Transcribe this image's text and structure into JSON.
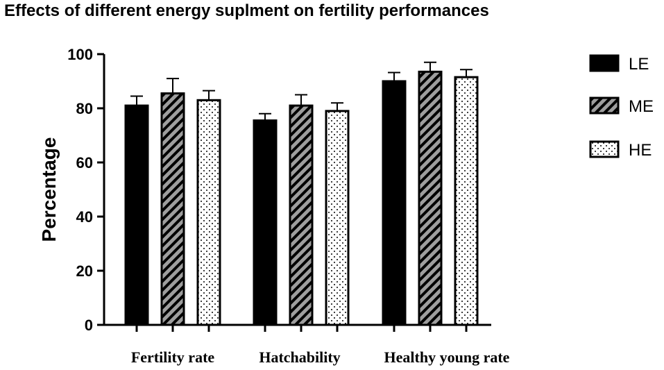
{
  "chart_data": {
    "type": "bar",
    "title": "Effects of different energy suplment on fertility performances",
    "xlabel": "",
    "ylabel": "Percentage",
    "ylim": [
      0,
      100
    ],
    "yticks": [
      "0",
      "20",
      "40",
      "60",
      "80",
      "100"
    ],
    "categories": [
      "Fertility rate",
      "Hatchability",
      "Healthy young rate"
    ],
    "series": [
      {
        "name": "LE",
        "pattern": "solid",
        "values": [
          81,
          75.5,
          90
        ],
        "errors": [
          3.5,
          2.5,
          3.2
        ]
      },
      {
        "name": "ME",
        "pattern": "diagonal-stripes",
        "values": [
          85.5,
          81,
          93.5
        ],
        "errors": [
          5.5,
          4,
          3.5
        ]
      },
      {
        "name": "HE",
        "pattern": "dots",
        "values": [
          83,
          79,
          91.5
        ],
        "errors": [
          3.5,
          3,
          2.8
        ]
      }
    ],
    "legend_position": "right",
    "colors": {
      "solid": "#000000",
      "stripe_bg": "#9e9e9e",
      "stripe_fg": "#000000",
      "dot_bg": "#ffffff",
      "dot_fg": "#000000"
    }
  }
}
